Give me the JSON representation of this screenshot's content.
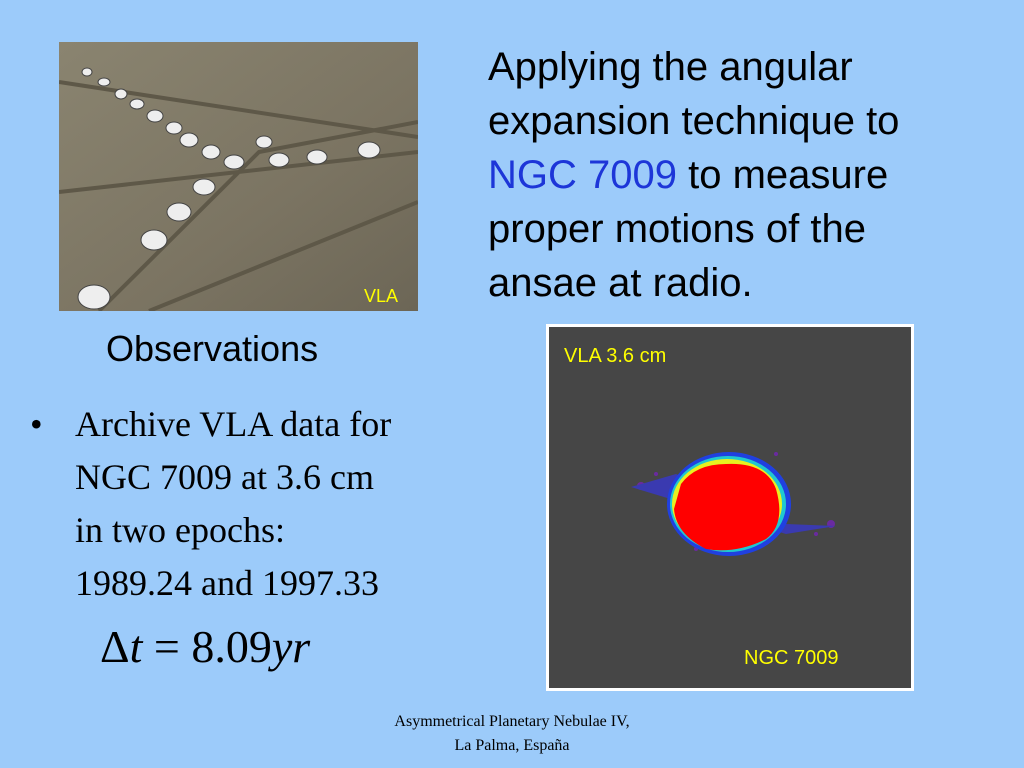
{
  "heading": {
    "lines": [
      [
        "Applying the angular"
      ],
      [
        "expansion technique to"
      ],
      [
        "NGC 7009",
        " to measure"
      ],
      [
        "proper motions of the"
      ],
      [
        "ansae at radio."
      ]
    ]
  },
  "photo": {
    "label": "VLA"
  },
  "subheading": "Observations",
  "bullet": {
    "lines": [
      "Archive VLA data for",
      "NGC 7009 at 3.6 cm",
      "in two epochs:",
      "1989.24 and 1997.33"
    ]
  },
  "equation": [
    "Δ",
    "t",
    "=",
    "8.09",
    "yr"
  ],
  "radio_image": {
    "title": "VLA 3.6 cm",
    "label": "NGC 7009"
  },
  "footer": [
    "Asymmetrical Planetary Nebulae IV,",
    "La Palma, España"
  ]
}
